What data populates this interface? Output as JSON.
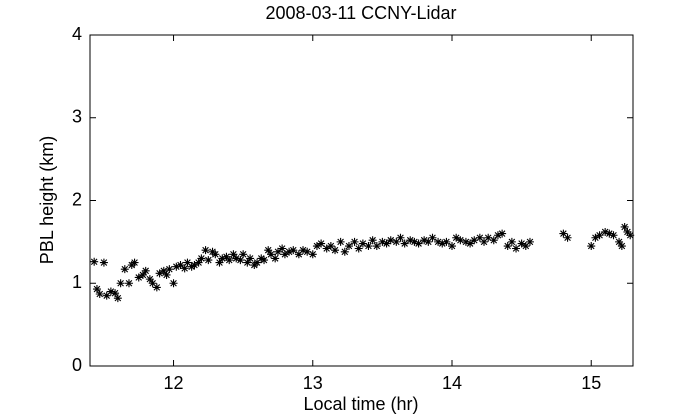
{
  "chart_data": {
    "type": "scatter",
    "title": "2008-03-11 CCNY-Lidar",
    "xlabel": "Local time (hr)",
    "ylabel": "PBL height (km)",
    "color": "#000000",
    "xlim": [
      11.4,
      15.3
    ],
    "xticks": [
      12,
      13,
      14,
      15
    ],
    "ylim": [
      0,
      4
    ],
    "yticks": [
      0,
      1,
      2,
      3,
      4
    ],
    "x": [
      11.43,
      11.45,
      11.47,
      11.5,
      11.52,
      11.55,
      11.58,
      11.6,
      11.62,
      11.65,
      11.68,
      11.7,
      11.72,
      11.75,
      11.78,
      11.8,
      11.83,
      11.85,
      11.88,
      11.9,
      11.93,
      11.95,
      11.97,
      12.0,
      12.02,
      12.05,
      12.08,
      12.1,
      12.13,
      12.15,
      12.18,
      12.2,
      12.23,
      12.25,
      12.28,
      12.3,
      12.33,
      12.35,
      12.38,
      12.4,
      12.43,
      12.45,
      12.48,
      12.5,
      12.53,
      12.55,
      12.58,
      12.6,
      12.63,
      12.65,
      12.68,
      12.7,
      12.73,
      12.75,
      12.78,
      12.8,
      12.83,
      12.86,
      12.9,
      12.93,
      12.96,
      13.0,
      13.03,
      13.06,
      13.1,
      13.13,
      13.16,
      13.2,
      13.23,
      13.26,
      13.3,
      13.33,
      13.36,
      13.4,
      13.43,
      13.46,
      13.5,
      13.53,
      13.56,
      13.6,
      13.63,
      13.66,
      13.7,
      13.73,
      13.76,
      13.8,
      13.83,
      13.86,
      13.9,
      13.93,
      13.96,
      14.0,
      14.03,
      14.06,
      14.1,
      14.13,
      14.16,
      14.2,
      14.23,
      14.26,
      14.3,
      14.33,
      14.36,
      14.4,
      14.43,
      14.46,
      14.5,
      14.53,
      14.56,
      14.8,
      14.83,
      15.0,
      15.03,
      15.06,
      15.1,
      15.13,
      15.16,
      15.2,
      15.22,
      15.24,
      15.26,
      15.28
    ],
    "values": [
      1.26,
      0.93,
      0.87,
      1.25,
      0.85,
      0.9,
      0.88,
      0.82,
      1.0,
      1.17,
      1.0,
      1.22,
      1.25,
      1.07,
      1.1,
      1.15,
      1.05,
      1.0,
      0.95,
      1.12,
      1.15,
      1.1,
      1.17,
      1.0,
      1.2,
      1.22,
      1.18,
      1.25,
      1.2,
      1.22,
      1.25,
      1.3,
      1.4,
      1.28,
      1.38,
      1.35,
      1.25,
      1.3,
      1.32,
      1.28,
      1.35,
      1.3,
      1.28,
      1.35,
      1.25,
      1.3,
      1.22,
      1.25,
      1.3,
      1.28,
      1.4,
      1.35,
      1.3,
      1.38,
      1.42,
      1.35,
      1.38,
      1.4,
      1.35,
      1.4,
      1.38,
      1.35,
      1.45,
      1.48,
      1.42,
      1.45,
      1.4,
      1.5,
      1.38,
      1.45,
      1.5,
      1.42,
      1.48,
      1.45,
      1.52,
      1.45,
      1.5,
      1.48,
      1.52,
      1.5,
      1.55,
      1.48,
      1.52,
      1.5,
      1.48,
      1.52,
      1.5,
      1.55,
      1.5,
      1.48,
      1.5,
      1.45,
      1.55,
      1.52,
      1.5,
      1.48,
      1.52,
      1.55,
      1.5,
      1.55,
      1.52,
      1.58,
      1.6,
      1.45,
      1.5,
      1.42,
      1.48,
      1.45,
      1.5,
      1.6,
      1.55,
      1.45,
      1.55,
      1.58,
      1.62,
      1.6,
      1.58,
      1.5,
      1.45,
      1.68,
      1.62,
      1.58
    ]
  }
}
